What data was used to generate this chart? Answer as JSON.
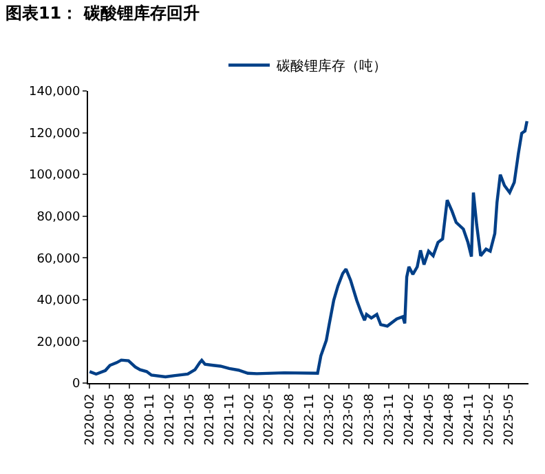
{
  "chart_data": {
    "type": "line",
    "title": "图表11： 碳酸锂库存回升",
    "x": [
      "2020-02-01",
      "2020-03-02",
      "2020-04-13",
      "2020-05-04",
      "2020-06-04",
      "2020-06-25",
      "2020-07-28",
      "2020-08-28",
      "2020-09-19",
      "2020-10-19",
      "2020-11-10",
      "2021-01-13",
      "2021-02-25",
      "2021-04-25",
      "2021-05-28",
      "2021-06-19",
      "2021-06-28",
      "2021-07-13",
      "2021-08-19",
      "2021-09-22",
      "2021-11-01",
      "2021-12-13",
      "2022-01-25",
      "2022-03-07",
      "2022-07-10",
      "2022-12-10",
      "2022-12-25",
      "2023-01-19",
      "2023-02-01",
      "2023-02-22",
      "2023-03-13",
      "2023-04-04",
      "2023-04-19",
      "2023-05-10",
      "2023-06-07",
      "2023-06-28",
      "2023-07-13",
      "2023-07-22",
      "2023-08-13",
      "2023-09-07",
      "2023-09-25",
      "2023-10-25",
      "2023-12-07",
      "2024-01-04",
      "2024-01-13",
      "2024-01-22",
      "2024-02-01",
      "2024-02-19",
      "2024-03-10",
      "2024-03-25",
      "2024-04-10",
      "2024-05-01",
      "2024-05-22",
      "2024-06-13",
      "2024-07-04",
      "2024-07-25",
      "2024-08-16",
      "2024-09-04",
      "2024-10-07",
      "2024-10-28",
      "2024-11-13",
      "2024-11-22",
      "2024-12-07",
      "2024-12-25",
      "2025-01-19",
      "2025-02-07",
      "2025-02-28",
      "2025-03-10",
      "2025-03-25",
      "2025-04-13",
      "2025-05-07",
      "2025-05-28",
      "2025-06-16",
      "2025-07-01",
      "2025-07-16",
      "2025-07-25"
    ],
    "series": [
      {
        "name": "碳酸锂库存（吨）",
        "color": "#003f87",
        "values": [
          5500,
          4300,
          6000,
          8500,
          9800,
          11000,
          10700,
          7700,
          6400,
          5500,
          3800,
          3000,
          3600,
          4300,
          6400,
          9800,
          10900,
          9000,
          8500,
          8100,
          7000,
          6200,
          4700,
          4500,
          4900,
          4700,
          13000,
          20500,
          28000,
          39700,
          46500,
          52500,
          54600,
          49300,
          39700,
          33700,
          30100,
          32900,
          31200,
          32900,
          28000,
          27300,
          30700,
          31800,
          28600,
          50800,
          55700,
          52100,
          55700,
          63600,
          56800,
          63200,
          61000,
          67400,
          69100,
          87700,
          82400,
          77000,
          73800,
          67400,
          60600,
          91300,
          75900,
          61000,
          64200,
          63200,
          71700,
          86600,
          99900,
          94700,
          91300,
          96200,
          110100,
          119700,
          120800,
          125500
        ]
      }
    ],
    "xlim": [
      "2020-01-25",
      "2025-08-01"
    ],
    "xticks": [
      "2020-02",
      "2020-05",
      "2020-08",
      "2020-11",
      "2021-02",
      "2021-05",
      "2021-08",
      "2021-11",
      "2022-02",
      "2022-05",
      "2022-08",
      "2022-11",
      "2023-02",
      "2023-05",
      "2023-08",
      "2023-11",
      "2024-02",
      "2024-05",
      "2024-08",
      "2024-11",
      "2025-02",
      "2025-05"
    ],
    "ylim": [
      0,
      140000
    ],
    "yticks": [
      0,
      {
        "value": 20000,
        "label": "20,000"
      },
      {
        "value": 40000,
        "label": "40,000"
      },
      {
        "value": 60000,
        "label": "60,000"
      },
      {
        "value": 80000,
        "label": "80,000"
      },
      {
        "value": 100000,
        "label": "100,000"
      },
      {
        "value": 120000,
        "label": "120,000"
      },
      {
        "value": 140000,
        "label": "140,000"
      }
    ],
    "legend": "top",
    "marker": "none",
    "line_style": "solid"
  }
}
